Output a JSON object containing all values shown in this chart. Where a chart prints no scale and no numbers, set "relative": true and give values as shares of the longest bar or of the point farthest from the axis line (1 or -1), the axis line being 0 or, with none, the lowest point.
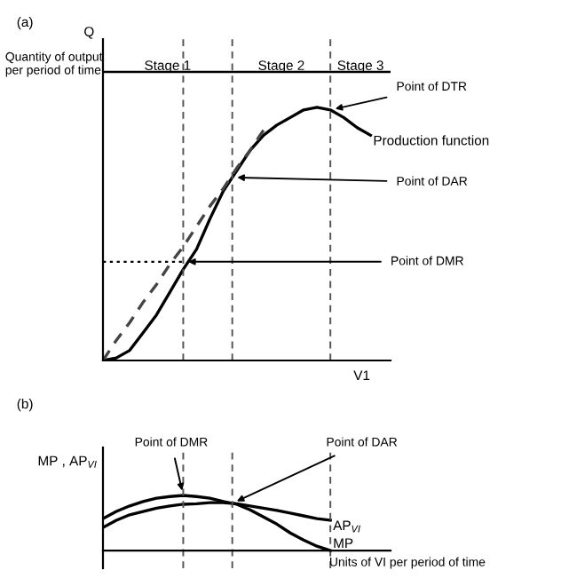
{
  "chart_data": [
    {
      "type": "line",
      "title": "(a)",
      "ylabel": "Quantity of output per period of time",
      "xlabel": "V1",
      "relative": true,
      "legend": false,
      "marker": "none",
      "categories": [
        null,
        null,
        null,
        null,
        null,
        null,
        null,
        null,
        null,
        null,
        null,
        null,
        null,
        null,
        null,
        null,
        null,
        null,
        null,
        null,
        null
      ],
      "series": [
        {
          "name": "Production function",
          "color": "#000000",
          "line_style": "solid",
          "values": [
            0,
            0.01,
            0.04,
            0.11,
            0.18,
            0.27,
            0.36,
            0.44,
            0.56,
            0.67,
            0.75,
            0.83,
            0.89,
            0.93,
            0.96,
            0.99,
            1.0,
            0.99,
            0.96,
            0.92,
            0.89
          ]
        },
        {
          "color": "#444444",
          "line_style": "dashed",
          "values": [
            0,
            0.08,
            0.15,
            0.23,
            0.3,
            0.38,
            0.45,
            0.53,
            0.61,
            0.68,
            0.76,
            0.83,
            0.91,
            null,
            null,
            null,
            null,
            null,
            null,
            null,
            null
          ]
        }
      ],
      "ref_lines": [
        {
          "axis": "y",
          "value": 0.39,
          "label": "Point of DMR",
          "line_style": "dotted",
          "color": "#000000"
        },
        {
          "axis": "y",
          "value": 1.14,
          "line_style": "solid",
          "color": "#000000"
        }
      ],
      "annotations": [
        "Q",
        "Stage 1",
        "Stage 2",
        "Stage 3",
        "Point of DTR",
        "Point of DAR"
      ]
    },
    {
      "type": "line",
      "title": "(b)",
      "ylabel": "MP , AP$_{VI}$",
      "xlabel": "Units of VI per period of time",
      "relative": true,
      "legend": false,
      "marker": "none",
      "categories": [
        null,
        null,
        null,
        null,
        null,
        null,
        null,
        null,
        null,
        null,
        null,
        null,
        null,
        null,
        null,
        null,
        null,
        null,
        null,
        null,
        null
      ],
      "series": [
        {
          "name": "AP$_{VI}$",
          "color": "#000000",
          "line_style": "solid",
          "values": [
            0.42,
            0.55,
            0.65,
            0.71,
            0.77,
            0.81,
            0.84,
            0.85,
            0.87,
            0.87,
            0.85,
            0.81,
            0.77,
            0.73,
            0.68,
            0.63,
            0.58,
            0.55,
            null,
            null,
            null
          ]
        },
        {
          "name": "MP",
          "color": "#000000",
          "line_style": "solid",
          "values": [
            0.58,
            0.71,
            0.81,
            0.89,
            0.95,
            0.98,
            1.0,
            0.98,
            0.95,
            0.89,
            0.84,
            0.74,
            0.61,
            0.48,
            0.32,
            0.19,
            0.08,
            0,
            null,
            null,
            null
          ]
        }
      ],
      "annotations": [
        "Point of DMR",
        "Point of DAR"
      ]
    }
  ]
}
